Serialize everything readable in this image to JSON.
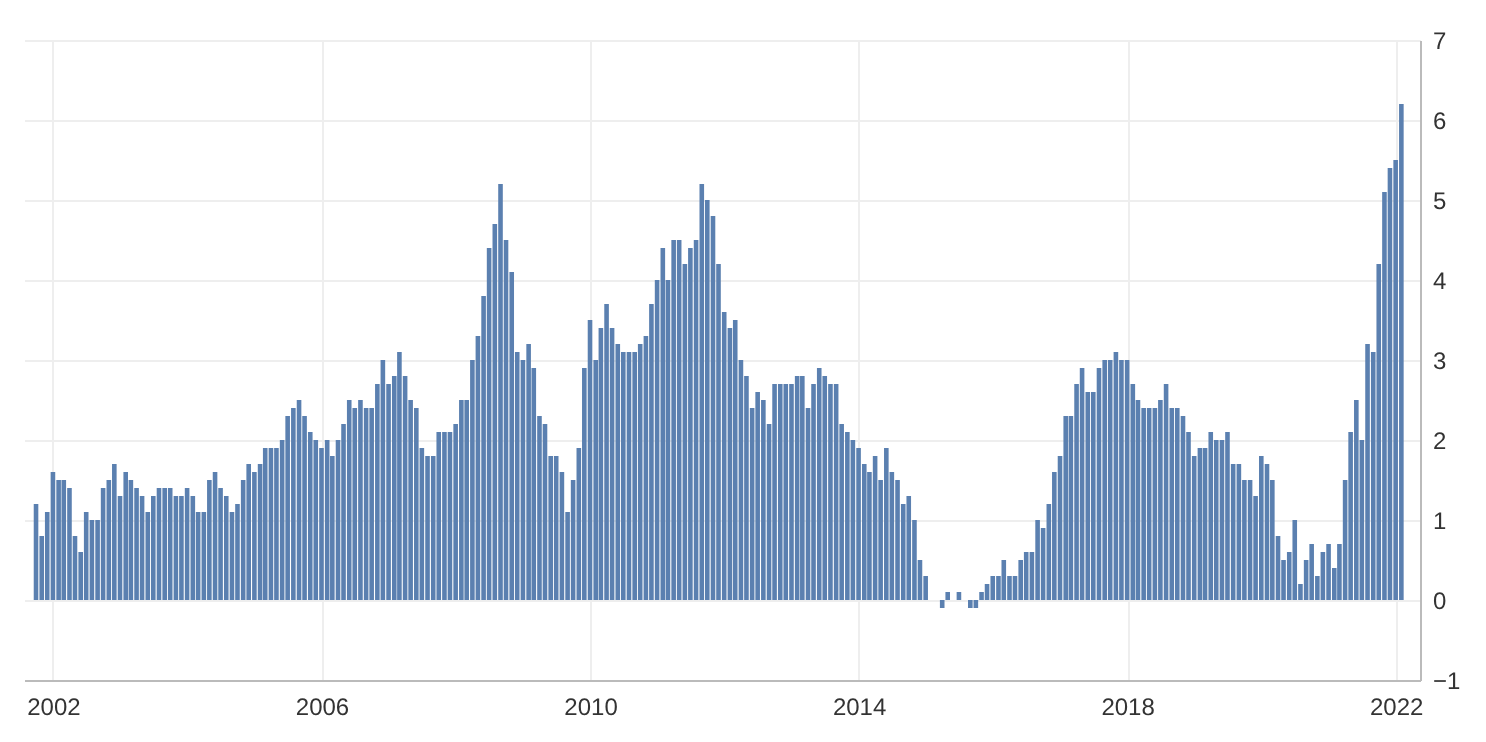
{
  "chart_data": {
    "type": "bar",
    "color": "#5b80b0",
    "grid": true,
    "x": [
      "2001-10",
      "2001-11",
      "2001-12",
      "2002-01",
      "2002-02",
      "2002-03",
      "2002-04",
      "2002-05",
      "2002-06",
      "2002-07",
      "2002-08",
      "2002-09",
      "2002-10",
      "2002-11",
      "2002-12",
      "2003-01",
      "2003-02",
      "2003-03",
      "2003-04",
      "2003-05",
      "2003-06",
      "2003-07",
      "2003-08",
      "2003-09",
      "2003-10",
      "2003-11",
      "2003-12",
      "2004-01",
      "2004-02",
      "2004-03",
      "2004-04",
      "2004-05",
      "2004-06",
      "2004-07",
      "2004-08",
      "2004-09",
      "2004-10",
      "2004-11",
      "2004-12",
      "2005-01",
      "2005-02",
      "2005-03",
      "2005-04",
      "2005-05",
      "2005-06",
      "2005-07",
      "2005-08",
      "2005-09",
      "2005-10",
      "2005-11",
      "2005-12",
      "2006-01",
      "2006-02",
      "2006-03",
      "2006-04",
      "2006-05",
      "2006-06",
      "2006-07",
      "2006-08",
      "2006-09",
      "2006-10",
      "2006-11",
      "2006-12",
      "2007-01",
      "2007-02",
      "2007-03",
      "2007-04",
      "2007-05",
      "2007-06",
      "2007-07",
      "2007-08",
      "2007-09",
      "2007-10",
      "2007-11",
      "2007-12",
      "2008-01",
      "2008-02",
      "2008-03",
      "2008-04",
      "2008-05",
      "2008-06",
      "2008-07",
      "2008-08",
      "2008-09",
      "2008-10",
      "2008-11",
      "2008-12",
      "2009-01",
      "2009-02",
      "2009-03",
      "2009-04",
      "2009-05",
      "2009-06",
      "2009-07",
      "2009-08",
      "2009-09",
      "2009-10",
      "2009-11",
      "2009-12",
      "2010-01",
      "2010-02",
      "2010-03",
      "2010-04",
      "2010-05",
      "2010-06",
      "2010-07",
      "2010-08",
      "2010-09",
      "2010-10",
      "2010-11",
      "2010-12",
      "2011-01",
      "2011-02",
      "2011-03",
      "2011-04",
      "2011-05",
      "2011-06",
      "2011-07",
      "2011-08",
      "2011-09",
      "2011-10",
      "2011-11",
      "2011-12",
      "2012-01",
      "2012-02",
      "2012-03",
      "2012-04",
      "2012-05",
      "2012-06",
      "2012-07",
      "2012-08",
      "2012-09",
      "2012-10",
      "2012-11",
      "2012-12",
      "2013-01",
      "2013-02",
      "2013-03",
      "2013-04",
      "2013-05",
      "2013-06",
      "2013-07",
      "2013-08",
      "2013-09",
      "2013-10",
      "2013-11",
      "2013-12",
      "2014-01",
      "2014-02",
      "2014-03",
      "2014-04",
      "2014-05",
      "2014-06",
      "2014-07",
      "2014-08",
      "2014-09",
      "2014-10",
      "2014-11",
      "2014-12",
      "2015-01",
      "2015-02",
      "2015-03",
      "2015-04",
      "2015-05",
      "2015-06",
      "2015-07",
      "2015-08",
      "2015-09",
      "2015-10",
      "2015-11",
      "2015-12",
      "2016-01",
      "2016-02",
      "2016-03",
      "2016-04",
      "2016-05",
      "2016-06",
      "2016-07",
      "2016-08",
      "2016-09",
      "2016-10",
      "2016-11",
      "2016-12",
      "2017-01",
      "2017-02",
      "2017-03",
      "2017-04",
      "2017-05",
      "2017-06",
      "2017-07",
      "2017-08",
      "2017-09",
      "2017-10",
      "2017-11",
      "2017-12",
      "2018-01",
      "2018-02",
      "2018-03",
      "2018-04",
      "2018-05",
      "2018-06",
      "2018-07",
      "2018-08",
      "2018-09",
      "2018-10",
      "2018-11",
      "2018-12",
      "2019-01",
      "2019-02",
      "2019-03",
      "2019-04",
      "2019-05",
      "2019-06",
      "2019-07",
      "2019-08",
      "2019-09",
      "2019-10",
      "2019-11",
      "2019-12",
      "2020-01",
      "2020-02",
      "2020-03",
      "2020-04",
      "2020-05",
      "2020-06",
      "2020-07",
      "2020-08",
      "2020-09",
      "2020-10",
      "2020-11",
      "2020-12",
      "2021-01",
      "2021-02",
      "2021-03",
      "2021-04",
      "2021-05",
      "2021-06",
      "2021-07",
      "2021-08",
      "2021-09",
      "2021-10",
      "2021-11",
      "2021-12",
      "2022-01",
      "2022-02"
    ],
    "values": [
      1.2,
      0.8,
      1.1,
      1.6,
      1.5,
      1.5,
      1.4,
      0.8,
      0.6,
      1.1,
      1.0,
      1.0,
      1.4,
      1.5,
      1.7,
      1.3,
      1.6,
      1.5,
      1.4,
      1.3,
      1.1,
      1.3,
      1.4,
      1.4,
      1.4,
      1.3,
      1.3,
      1.4,
      1.3,
      1.1,
      1.1,
      1.5,
      1.6,
      1.4,
      1.3,
      1.1,
      1.2,
      1.5,
      1.7,
      1.6,
      1.7,
      1.9,
      1.9,
      1.9,
      2.0,
      2.3,
      2.4,
      2.5,
      2.3,
      2.1,
      2.0,
      1.9,
      2.0,
      1.8,
      2.0,
      2.2,
      2.5,
      2.4,
      2.5,
      2.4,
      2.4,
      2.7,
      3.0,
      2.7,
      2.8,
      3.1,
      2.8,
      2.5,
      2.4,
      1.9,
      1.8,
      1.8,
      2.1,
      2.1,
      2.1,
      2.2,
      2.5,
      2.5,
      3.0,
      3.3,
      3.8,
      4.4,
      4.7,
      5.2,
      4.5,
      4.1,
      3.1,
      3.0,
      3.2,
      2.9,
      2.3,
      2.2,
      1.8,
      1.8,
      1.6,
      1.1,
      1.5,
      1.9,
      2.9,
      3.5,
      3.0,
      3.4,
      3.7,
      3.4,
      3.2,
      3.1,
      3.1,
      3.1,
      3.2,
      3.3,
      3.7,
      4.0,
      4.4,
      4.0,
      4.5,
      4.5,
      4.2,
      4.4,
      4.5,
      5.2,
      5.0,
      4.8,
      4.2,
      3.6,
      3.4,
      3.5,
      3.0,
      2.8,
      2.4,
      2.6,
      2.5,
      2.2,
      2.7,
      2.7,
      2.7,
      2.7,
      2.8,
      2.8,
      2.4,
      2.7,
      2.9,
      2.8,
      2.7,
      2.7,
      2.2,
      2.1,
      2.0,
      1.9,
      1.7,
      1.6,
      1.8,
      1.5,
      1.9,
      1.6,
      1.5,
      1.2,
      1.3,
      1.0,
      0.5,
      0.3,
      0.0,
      0.0,
      -0.1,
      0.1,
      0.0,
      0.1,
      0.0,
      -0.1,
      -0.1,
      0.1,
      0.2,
      0.3,
      0.3,
      0.5,
      0.3,
      0.3,
      0.5,
      0.6,
      0.6,
      1.0,
      0.9,
      1.2,
      1.6,
      1.8,
      2.3,
      2.3,
      2.7,
      2.9,
      2.6,
      2.6,
      2.9,
      3.0,
      3.0,
      3.1,
      3.0,
      3.0,
      2.7,
      2.5,
      2.4,
      2.4,
      2.4,
      2.5,
      2.7,
      2.4,
      2.4,
      2.3,
      2.1,
      1.8,
      1.9,
      1.9,
      2.1,
      2.0,
      2.0,
      2.1,
      1.7,
      1.7,
      1.5,
      1.5,
      1.3,
      1.8,
      1.7,
      1.5,
      0.8,
      0.5,
      0.6,
      1.0,
      0.2,
      0.5,
      0.7,
      0.3,
      0.6,
      0.7,
      0.4,
      0.7,
      1.5,
      2.1,
      2.5,
      2.0,
      3.2,
      3.1,
      4.2,
      5.1,
      5.4,
      5.5,
      6.2
    ],
    "xlim": [
      "2001-09-20",
      "2022-03-20"
    ],
    "xticks": [
      "2002",
      "2006",
      "2010",
      "2014",
      "2018",
      "2022"
    ],
    "ylim": [
      -1,
      7
    ],
    "yticks": [
      -1,
      0,
      1,
      2,
      3,
      4,
      5,
      6,
      7
    ]
  }
}
